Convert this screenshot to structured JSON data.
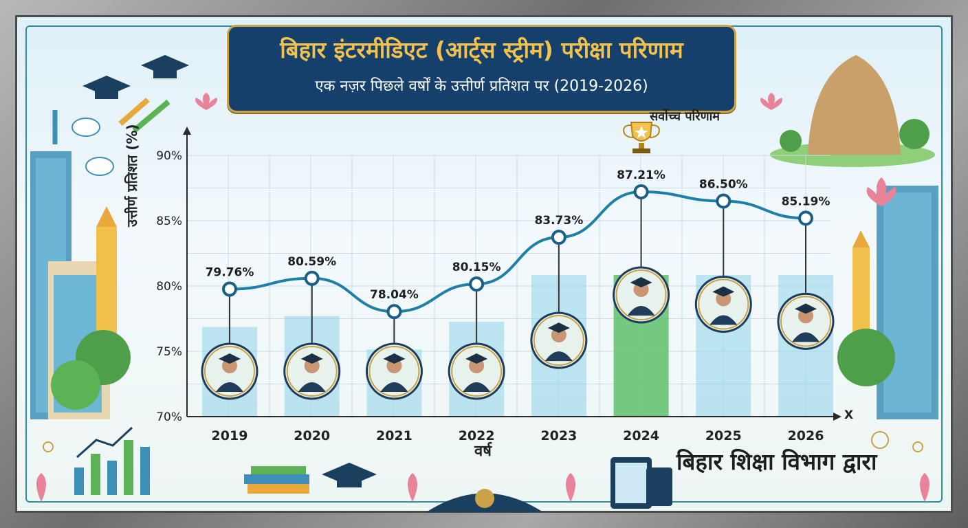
{
  "title": "बिहार इंटरमीडिएट (आर्ट्स स्ट्रीम) परीक्षा परिणाम",
  "subtitle": "एक नज़र पिछले वर्षों के उत्तीर्ण प्रतिशत पर (2019-2026)",
  "footer": "बिहार शिक्षा विभाग द्वारा",
  "top_label": "सर्वोच्च परिणाम",
  "x_axis_mark": "X",
  "colors": {
    "line": "#1f7fa6",
    "bar_blue": "#8fd3ea",
    "bar_green": "#5fbf6a",
    "banner": "#15406b",
    "gold": "#f2c14e"
  },
  "chart_data": {
    "type": "line",
    "xlabel": "वर्ष",
    "ylabel": "उत्तीर्ण प्रतिशत (%)",
    "categories": [
      "2019",
      "2020",
      "2021",
      "2022",
      "2023",
      "2024",
      "2025",
      "2026"
    ],
    "values": [
      79.76,
      80.59,
      78.04,
      80.15,
      83.73,
      87.21,
      86.5,
      85.19
    ],
    "data_labels": [
      "79.76%",
      "80.59%",
      "78.04%",
      "80.15%",
      "83.73%",
      "87.21%",
      "86.50%",
      "85.19%"
    ],
    "ylim": [
      70,
      90
    ],
    "yticks": [
      90,
      85,
      80,
      75,
      70
    ],
    "ytick_labels": [
      "90%",
      "85%",
      "80%",
      "75%",
      "70%"
    ],
    "highlight_index": 5,
    "grid": true
  }
}
